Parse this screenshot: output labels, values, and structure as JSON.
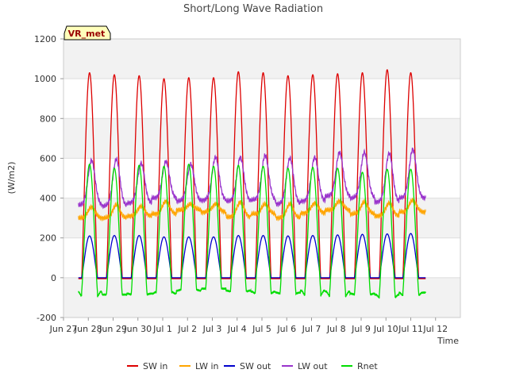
{
  "chart_data": {
    "type": "line",
    "title": "Short/Long Wave Radiation",
    "xlabel": "Time",
    "ylabel": "(W/m2)",
    "badge": "VR_met",
    "xlim": [
      0,
      16
    ],
    "ylim": [
      -200,
      1200
    ],
    "yticks": [
      -200,
      0,
      200,
      400,
      600,
      800,
      1000,
      1200
    ],
    "xticks": [
      {
        "pos": 0,
        "label": "Jun 27"
      },
      {
        "pos": 1,
        "label": "Jun 28"
      },
      {
        "pos": 2,
        "label": "Jun 29"
      },
      {
        "pos": 3,
        "label": "Jun 30"
      },
      {
        "pos": 4,
        "label": "Jul 1"
      },
      {
        "pos": 5,
        "label": "Jul 2"
      },
      {
        "pos": 6,
        "label": "Jul 3"
      },
      {
        "pos": 7,
        "label": "Jul 4"
      },
      {
        "pos": 8,
        "label": "Jul 5"
      },
      {
        "pos": 9,
        "label": "Jul 6"
      },
      {
        "pos": 10,
        "label": "Jul 7"
      },
      {
        "pos": 11,
        "label": "Jul 8"
      },
      {
        "pos": 12,
        "label": "Jul 9"
      },
      {
        "pos": 13,
        "label": "Jul 10"
      },
      {
        "pos": 14,
        "label": "Jul 11"
      },
      {
        "pos": 15,
        "label": "Jul 12"
      }
    ],
    "grid": true,
    "legend": "bottom",
    "data_extent": [
      0.6,
      14.6
    ],
    "day_peak_x": [
      1.05,
      2.05,
      3.05,
      4.05,
      5.05,
      6.05,
      7.05,
      8.05,
      9.05,
      10.05,
      11.05,
      12.05,
      13.05,
      14.0
    ],
    "series": [
      {
        "name": "SW in",
        "color": "#dd0000",
        "kind": "shortwave",
        "peaks": [
          1030,
          1020,
          1015,
          1000,
          1005,
          1005,
          1035,
          1030,
          1015,
          1020,
          1025,
          1030,
          1045,
          1030
        ],
        "night": -5
      },
      {
        "name": "LW in",
        "color": "#ffa500",
        "kind": "longwave",
        "peaks": [
          355,
          365,
          360,
          385,
          370,
          370,
          380,
          370,
          370,
          375,
          385,
          380,
          375,
          390
        ],
        "troughs": [
          300,
          300,
          310,
          320,
          340,
          330,
          305,
          320,
          300,
          325,
          340,
          320,
          310,
          330
        ]
      },
      {
        "name": "SW out",
        "color": "#0000cc",
        "kind": "shortwave",
        "peaks": [
          210,
          212,
          212,
          205,
          205,
          205,
          212,
          212,
          210,
          212,
          215,
          218,
          220,
          222
        ],
        "night": 0
      },
      {
        "name": "LW out",
        "color": "#9933cc",
        "kind": "longwave",
        "peaks": [
          590,
          595,
          575,
          585,
          570,
          605,
          605,
          615,
          600,
          605,
          630,
          630,
          625,
          645
        ],
        "troughs": [
          365,
          360,
          375,
          400,
          385,
          390,
          385,
          390,
          370,
          385,
          410,
          400,
          380,
          400
        ]
      },
      {
        "name": "Rnet",
        "color": "#00dd00",
        "kind": "net",
        "peaks": [
          570,
          550,
          565,
          560,
          570,
          560,
          565,
          560,
          550,
          555,
          550,
          530,
          545,
          545
        ],
        "night": [
          -70,
          -85,
          -80,
          -80,
          -65,
          -55,
          -65,
          -70,
          -75,
          -65,
          -70,
          -80,
          -85,
          -75
        ],
        "dip": [
          -95,
          -85,
          -85,
          -70,
          -60,
          -55,
          -70,
          -80,
          -80,
          -90,
          -95,
          -85,
          -100,
          -90
        ]
      }
    ]
  }
}
